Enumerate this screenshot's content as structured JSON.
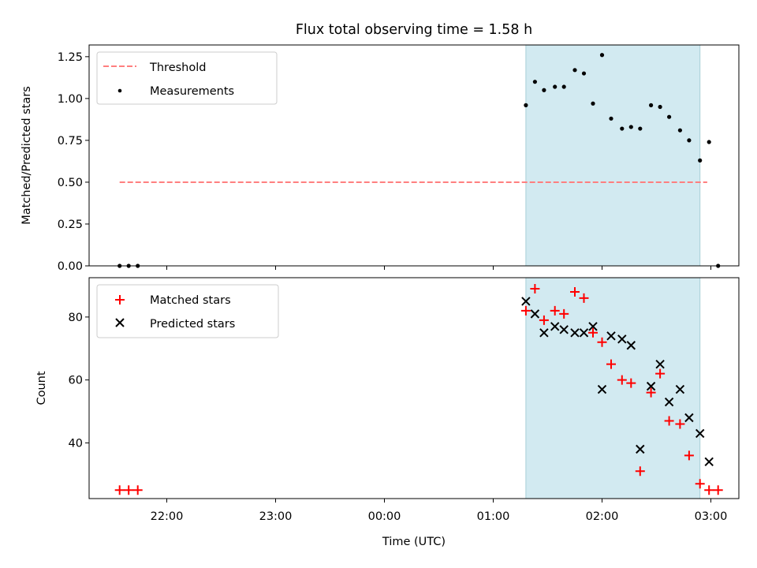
{
  "title": "Flux total observing time = 1.58 h",
  "colors": {
    "threshold": "#ff7f7f",
    "measurement": "#000000",
    "matched": "#ff0000",
    "predicted": "#000000",
    "span_fill": "#add8e6",
    "span_edge": "#a8cfd8"
  },
  "chart_data": [
    {
      "type": "scatter",
      "panel": "top",
      "ylabel": "Matched/Predicted stars",
      "xlabel": "",
      "ylim": [
        0,
        1.32
      ],
      "yticks": [
        0.0,
        0.25,
        0.5,
        0.75,
        1.0,
        1.25
      ],
      "ytick_labels": [
        "0.00",
        "0.25",
        "0.50",
        "0.75",
        "1.00",
        "1.25"
      ],
      "legend_position": "top-left",
      "legend": [
        "Threshold",
        "Measurements"
      ],
      "threshold": {
        "value": 0.5,
        "x_start": "21:34",
        "x_end": "02:58",
        "style": "dashed"
      },
      "observing_span": {
        "start": "01:18",
        "end": "02:54"
      },
      "series": [
        {
          "name": "Measurements",
          "marker": "dot",
          "points": [
            [
              "21:34",
              0.0
            ],
            [
              "21:39",
              0.0
            ],
            [
              "21:44",
              0.0
            ],
            [
              "01:18",
              0.96
            ],
            [
              "01:23",
              1.1
            ],
            [
              "01:28",
              1.05
            ],
            [
              "01:34",
              1.07
            ],
            [
              "01:39",
              1.07
            ],
            [
              "01:45",
              1.17
            ],
            [
              "01:50",
              1.15
            ],
            [
              "01:55",
              0.97
            ],
            [
              "02:00",
              1.26
            ],
            [
              "02:05",
              0.88
            ],
            [
              "02:11",
              0.82
            ],
            [
              "02:16",
              0.83
            ],
            [
              "02:21",
              0.82
            ],
            [
              "02:27",
              0.96
            ],
            [
              "02:32",
              0.95
            ],
            [
              "02:37",
              0.89
            ],
            [
              "02:43",
              0.81
            ],
            [
              "02:48",
              0.75
            ],
            [
              "02:54",
              0.63
            ],
            [
              "02:59",
              0.74
            ],
            [
              "03:04",
              0.0
            ]
          ]
        }
      ]
    },
    {
      "type": "scatter",
      "panel": "bottom",
      "ylabel": "Count",
      "xlabel": "Time (UTC)",
      "ylim": [
        22.3,
        92.5
      ],
      "yticks": [
        40,
        60,
        80
      ],
      "ytick_labels": [
        "40",
        "60",
        "80"
      ],
      "xticks": [
        "22:00",
        "23:00",
        "00:00",
        "01:00",
        "02:00",
        "03:00"
      ],
      "legend_position": "top-left",
      "legend": [
        "Matched stars",
        "Predicted stars"
      ],
      "observing_span": {
        "start": "01:18",
        "end": "02:54"
      },
      "series": [
        {
          "name": "Matched stars",
          "marker": "plus",
          "points": [
            [
              "21:34",
              25
            ],
            [
              "21:39",
              25
            ],
            [
              "21:44",
              25
            ],
            [
              "01:18",
              82
            ],
            [
              "01:23",
              89
            ],
            [
              "01:28",
              79
            ],
            [
              "01:34",
              82
            ],
            [
              "01:39",
              81
            ],
            [
              "01:45",
              88
            ],
            [
              "01:50",
              86
            ],
            [
              "01:55",
              75
            ],
            [
              "02:00",
              72
            ],
            [
              "02:05",
              65
            ],
            [
              "02:11",
              60
            ],
            [
              "02:16",
              59
            ],
            [
              "02:21",
              31
            ],
            [
              "02:27",
              56
            ],
            [
              "02:32",
              62
            ],
            [
              "02:37",
              47
            ],
            [
              "02:43",
              46
            ],
            [
              "02:48",
              36
            ],
            [
              "02:54",
              27
            ],
            [
              "02:59",
              25
            ],
            [
              "03:04",
              25
            ]
          ]
        },
        {
          "name": "Predicted stars",
          "marker": "x",
          "points": [
            [
              "01:18",
              85
            ],
            [
              "01:23",
              81
            ],
            [
              "01:28",
              75
            ],
            [
              "01:34",
              77
            ],
            [
              "01:39",
              76
            ],
            [
              "01:45",
              75
            ],
            [
              "01:50",
              75
            ],
            [
              "01:55",
              77
            ],
            [
              "02:00",
              57
            ],
            [
              "02:05",
              74
            ],
            [
              "02:11",
              73
            ],
            [
              "02:16",
              71
            ],
            [
              "02:21",
              38
            ],
            [
              "02:27",
              58
            ],
            [
              "02:32",
              65
            ],
            [
              "02:37",
              53
            ],
            [
              "02:43",
              57
            ],
            [
              "02:48",
              48
            ],
            [
              "02:54",
              43
            ],
            [
              "02:59",
              34
            ]
          ]
        }
      ]
    }
  ]
}
